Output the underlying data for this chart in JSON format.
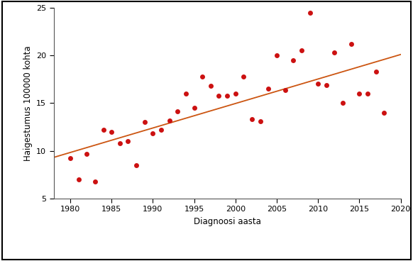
{
  "scatter_x": [
    1980,
    1981,
    1982,
    1983,
    1984,
    1985,
    1986,
    1987,
    1988,
    1989,
    1990,
    1991,
    1992,
    1993,
    1994,
    1995,
    1996,
    1997,
    1998,
    1999,
    2000,
    2001,
    2002,
    2003,
    2004,
    2005,
    2006,
    2007,
    2008,
    2009,
    2010,
    2011,
    2012,
    2013,
    2014,
    2015,
    2016,
    2017,
    2018
  ],
  "scatter_y": [
    9.2,
    7.0,
    9.7,
    6.8,
    12.2,
    12.0,
    10.8,
    11.0,
    8.5,
    13.0,
    11.8,
    12.2,
    13.2,
    14.1,
    16.0,
    14.5,
    17.8,
    16.8,
    15.8,
    15.8,
    16.0,
    17.8,
    13.3,
    13.1,
    16.5,
    20.0,
    16.4,
    19.5,
    20.5,
    24.5,
    17.0,
    16.9,
    20.3,
    15.0,
    21.2,
    16.0,
    16.0,
    18.3,
    14.0
  ],
  "reg_x0": 1978,
  "reg_y0": 9.3,
  "reg_x1": 2020,
  "reg_y1": 20.1,
  "xlim": [
    1978,
    2020
  ],
  "ylim": [
    5,
    25
  ],
  "xticks": [
    1980,
    1985,
    1990,
    1995,
    2000,
    2005,
    2010,
    2015,
    2020
  ],
  "yticks": [
    5,
    10,
    15,
    20,
    25
  ],
  "xlabel": "Diagnoosi aasta",
  "ylabel": "Haigestumus 100000 kohta",
  "scatter_color": "#CC1111",
  "line_color": "#CC5511",
  "marker_size": 5,
  "line_width": 1.3,
  "background_color": "#ffffff",
  "border_color": "#000000",
  "xlabel_fontsize": 8.5,
  "ylabel_fontsize": 8.5,
  "tick_fontsize": 8
}
